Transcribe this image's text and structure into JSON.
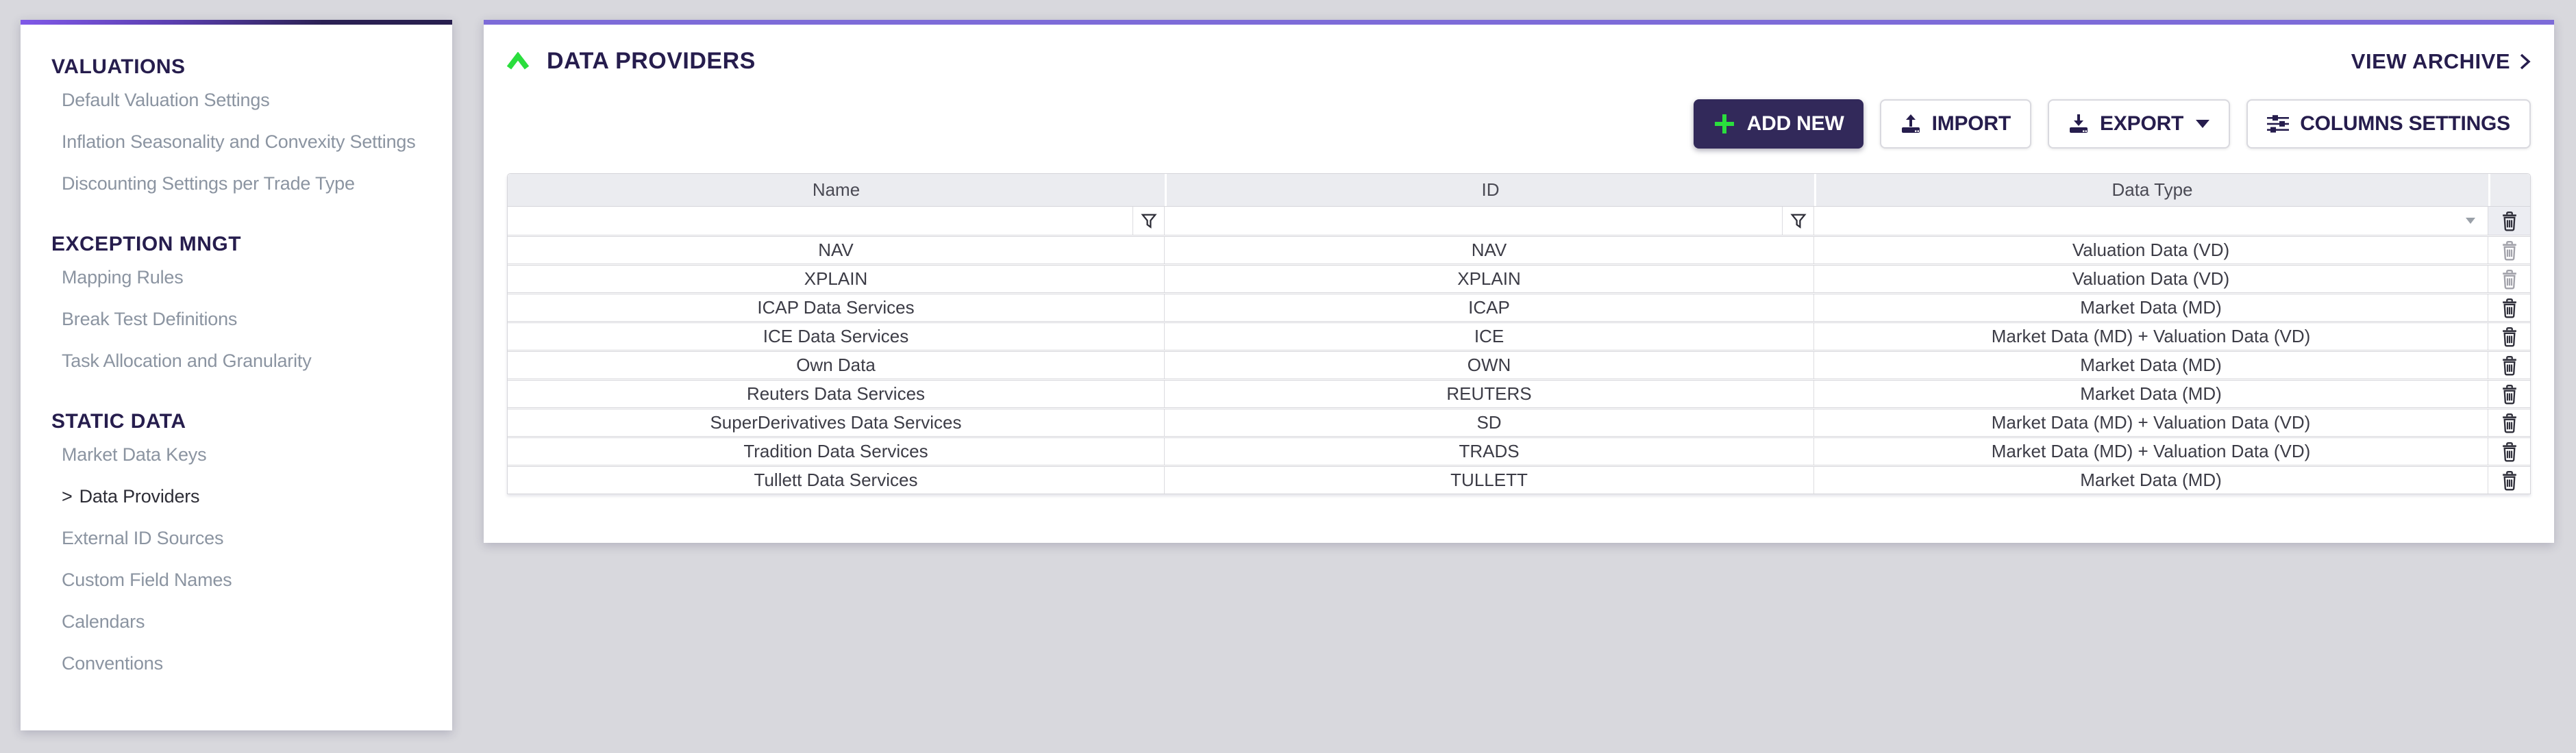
{
  "sidebar": {
    "active_prefix": ">",
    "sections": [
      {
        "heading": "VALUATIONS",
        "items": [
          {
            "label": "Default Valuation Settings",
            "active": false
          },
          {
            "label": "Inflation Seasonality and Convexity Settings",
            "active": false
          },
          {
            "label": "Discounting Settings per Trade Type",
            "active": false
          }
        ]
      },
      {
        "heading": "EXCEPTION MNGT",
        "items": [
          {
            "label": "Mapping Rules",
            "active": false
          },
          {
            "label": "Break Test Definitions",
            "active": false
          },
          {
            "label": "Task Allocation and Granularity",
            "active": false
          }
        ]
      },
      {
        "heading": "STATIC DATA",
        "items": [
          {
            "label": "Market Data Keys",
            "active": false
          },
          {
            "label": "Data Providers",
            "active": true
          },
          {
            "label": "External ID Sources",
            "active": false
          },
          {
            "label": "Custom Field Names",
            "active": false
          },
          {
            "label": "Calendars",
            "active": false
          },
          {
            "label": "Conventions",
            "active": false
          }
        ]
      }
    ]
  },
  "panel": {
    "title": "DATA PROVIDERS",
    "view_archive_label": "VIEW ARCHIVE"
  },
  "toolbar": {
    "add_new": "ADD NEW",
    "import": "IMPORT",
    "export": "EXPORT",
    "columns_settings": "COLUMNS SETTINGS"
  },
  "table": {
    "columns": [
      "Name",
      "ID",
      "Data Type"
    ],
    "filters": {
      "name": "",
      "id": "",
      "data_type": ""
    },
    "rows": [
      {
        "name": "NAV",
        "id": "NAV",
        "data_type": "Valuation Data (VD)",
        "delete_enabled": false
      },
      {
        "name": "XPLAIN",
        "id": "XPLAIN",
        "data_type": "Valuation Data (VD)",
        "delete_enabled": false
      },
      {
        "name": "ICAP Data Services",
        "id": "ICAP",
        "data_type": "Market Data (MD)",
        "delete_enabled": true
      },
      {
        "name": "ICE Data Services",
        "id": "ICE",
        "data_type": "Market Data (MD) + Valuation Data (VD)",
        "delete_enabled": true
      },
      {
        "name": "Own Data",
        "id": "OWN",
        "data_type": "Market Data (MD)",
        "delete_enabled": true
      },
      {
        "name": "Reuters Data Services",
        "id": "REUTERS",
        "data_type": "Market Data (MD)",
        "delete_enabled": true
      },
      {
        "name": "SuperDerivatives Data Services",
        "id": "SD",
        "data_type": "Market Data (MD) + Valuation Data (VD)",
        "delete_enabled": true
      },
      {
        "name": "Tradition Data Services",
        "id": "TRADS",
        "data_type": "Market Data (MD) + Valuation Data (VD)",
        "delete_enabled": true
      },
      {
        "name": "Tullett Data Services",
        "id": "TULLETT",
        "data_type": "Market Data (MD)",
        "delete_enabled": true
      }
    ]
  },
  "icons": {
    "collapse": "chevron-up",
    "view_archive": "chevron-right",
    "add_new": "plus",
    "import": "upload",
    "export": "download",
    "export_menu": "caret-down",
    "columns_settings": "sliders",
    "column_filter": "funnel",
    "data_type_filter": "caret-down",
    "delete_row": "trash"
  },
  "colors": {
    "page_background": "#d8d8dd",
    "panel_background": "#ffffff",
    "accent_purple": "#7d6bd8",
    "accent_dark_purple": "#32295a",
    "accent_green": "#2ade3d",
    "heading_text": "#261d4d",
    "muted_text": "#8b94a1",
    "table_text": "#3c3c46",
    "table_header_background": "#ebecf0"
  }
}
